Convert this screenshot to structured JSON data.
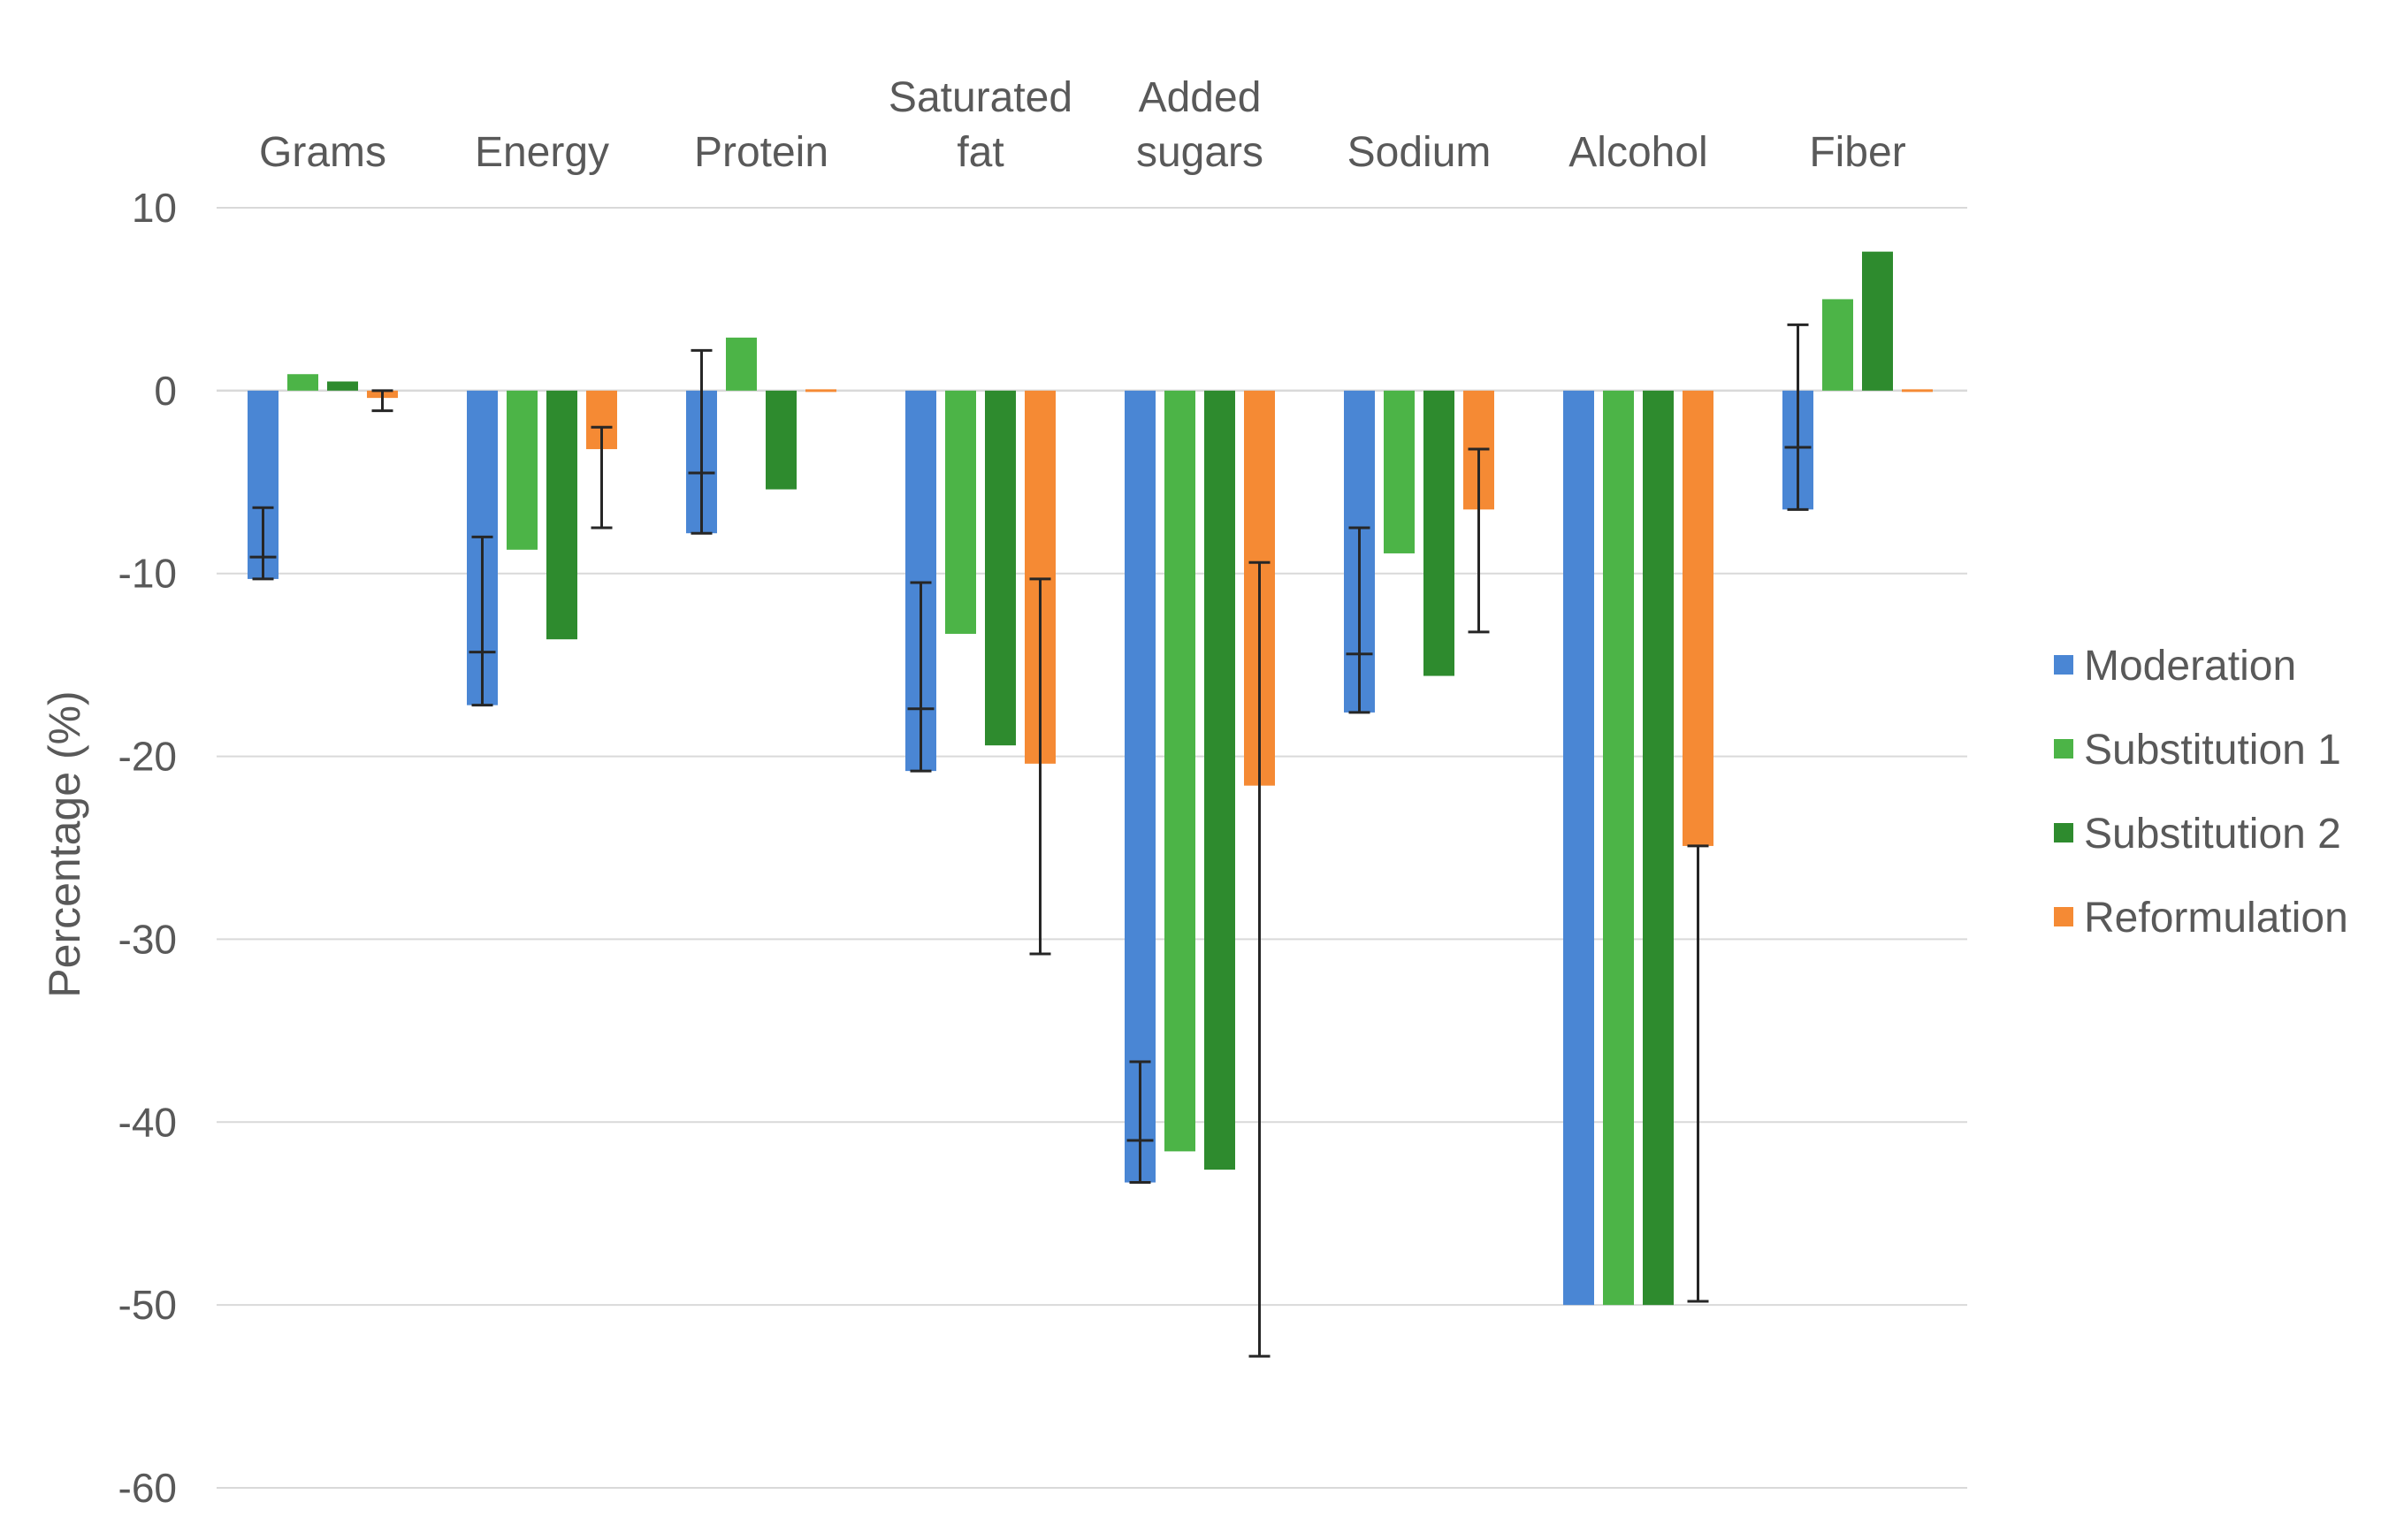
{
  "chart_data": {
    "type": "bar",
    "title": "",
    "xlabel": "",
    "ylabel": "Percentage (%)",
    "ylim": [
      -60,
      10
    ],
    "yticks": [
      10,
      0,
      -10,
      -20,
      -30,
      -40,
      -50,
      -60
    ],
    "grid": true,
    "legend_position": "right",
    "category_label_position": "top",
    "categories": [
      [
        "Grams"
      ],
      [
        "Energy"
      ],
      [
        "Protein"
      ],
      [
        "Saturated",
        "fat"
      ],
      [
        "Added",
        "sugars"
      ],
      [
        "Sodium"
      ],
      [
        "Alcohol"
      ],
      [
        "Fiber"
      ]
    ],
    "series": [
      {
        "name": "Moderation",
        "color": "#4a86d4",
        "values": [
          -10.3,
          -17.2,
          -7.8,
          -20.8,
          -43.3,
          -17.6,
          -50.0,
          -6.5
        ],
        "error_center": [
          -9.1,
          -14.3,
          -4.5,
          -17.4,
          -41.0,
          -14.4,
          null,
          -3.1
        ],
        "error_low": [
          -10.3,
          -17.2,
          -7.8,
          -20.8,
          -43.3,
          -17.6,
          null,
          -6.5
        ],
        "error_high": [
          -6.4,
          -8.0,
          2.2,
          -10.5,
          -36.7,
          -7.5,
          null,
          3.6
        ]
      },
      {
        "name": "Substitution 1",
        "color": "#4cb447",
        "values": [
          0.9,
          -8.7,
          2.9,
          -13.3,
          -41.6,
          -8.9,
          -50.0,
          5.0
        ]
      },
      {
        "name": "Substitution 2",
        "color": "#2e8b2e",
        "values": [
          0.5,
          -13.6,
          -5.4,
          -19.4,
          -42.6,
          -15.6,
          -50.0,
          7.6
        ]
      },
      {
        "name": "Reformulation",
        "color": "#f58a34",
        "values": [
          -0.4,
          -3.2,
          0.0,
          -20.4,
          -21.6,
          -6.5,
          -24.9,
          0.0
        ],
        "error_low": [
          -1.1,
          -7.5,
          null,
          -30.8,
          -52.8,
          -13.2,
          -49.8,
          null
        ],
        "error_high": [
          0.0,
          -2.0,
          null,
          -10.3,
          -9.4,
          -3.2,
          -24.9,
          null
        ]
      }
    ]
  }
}
